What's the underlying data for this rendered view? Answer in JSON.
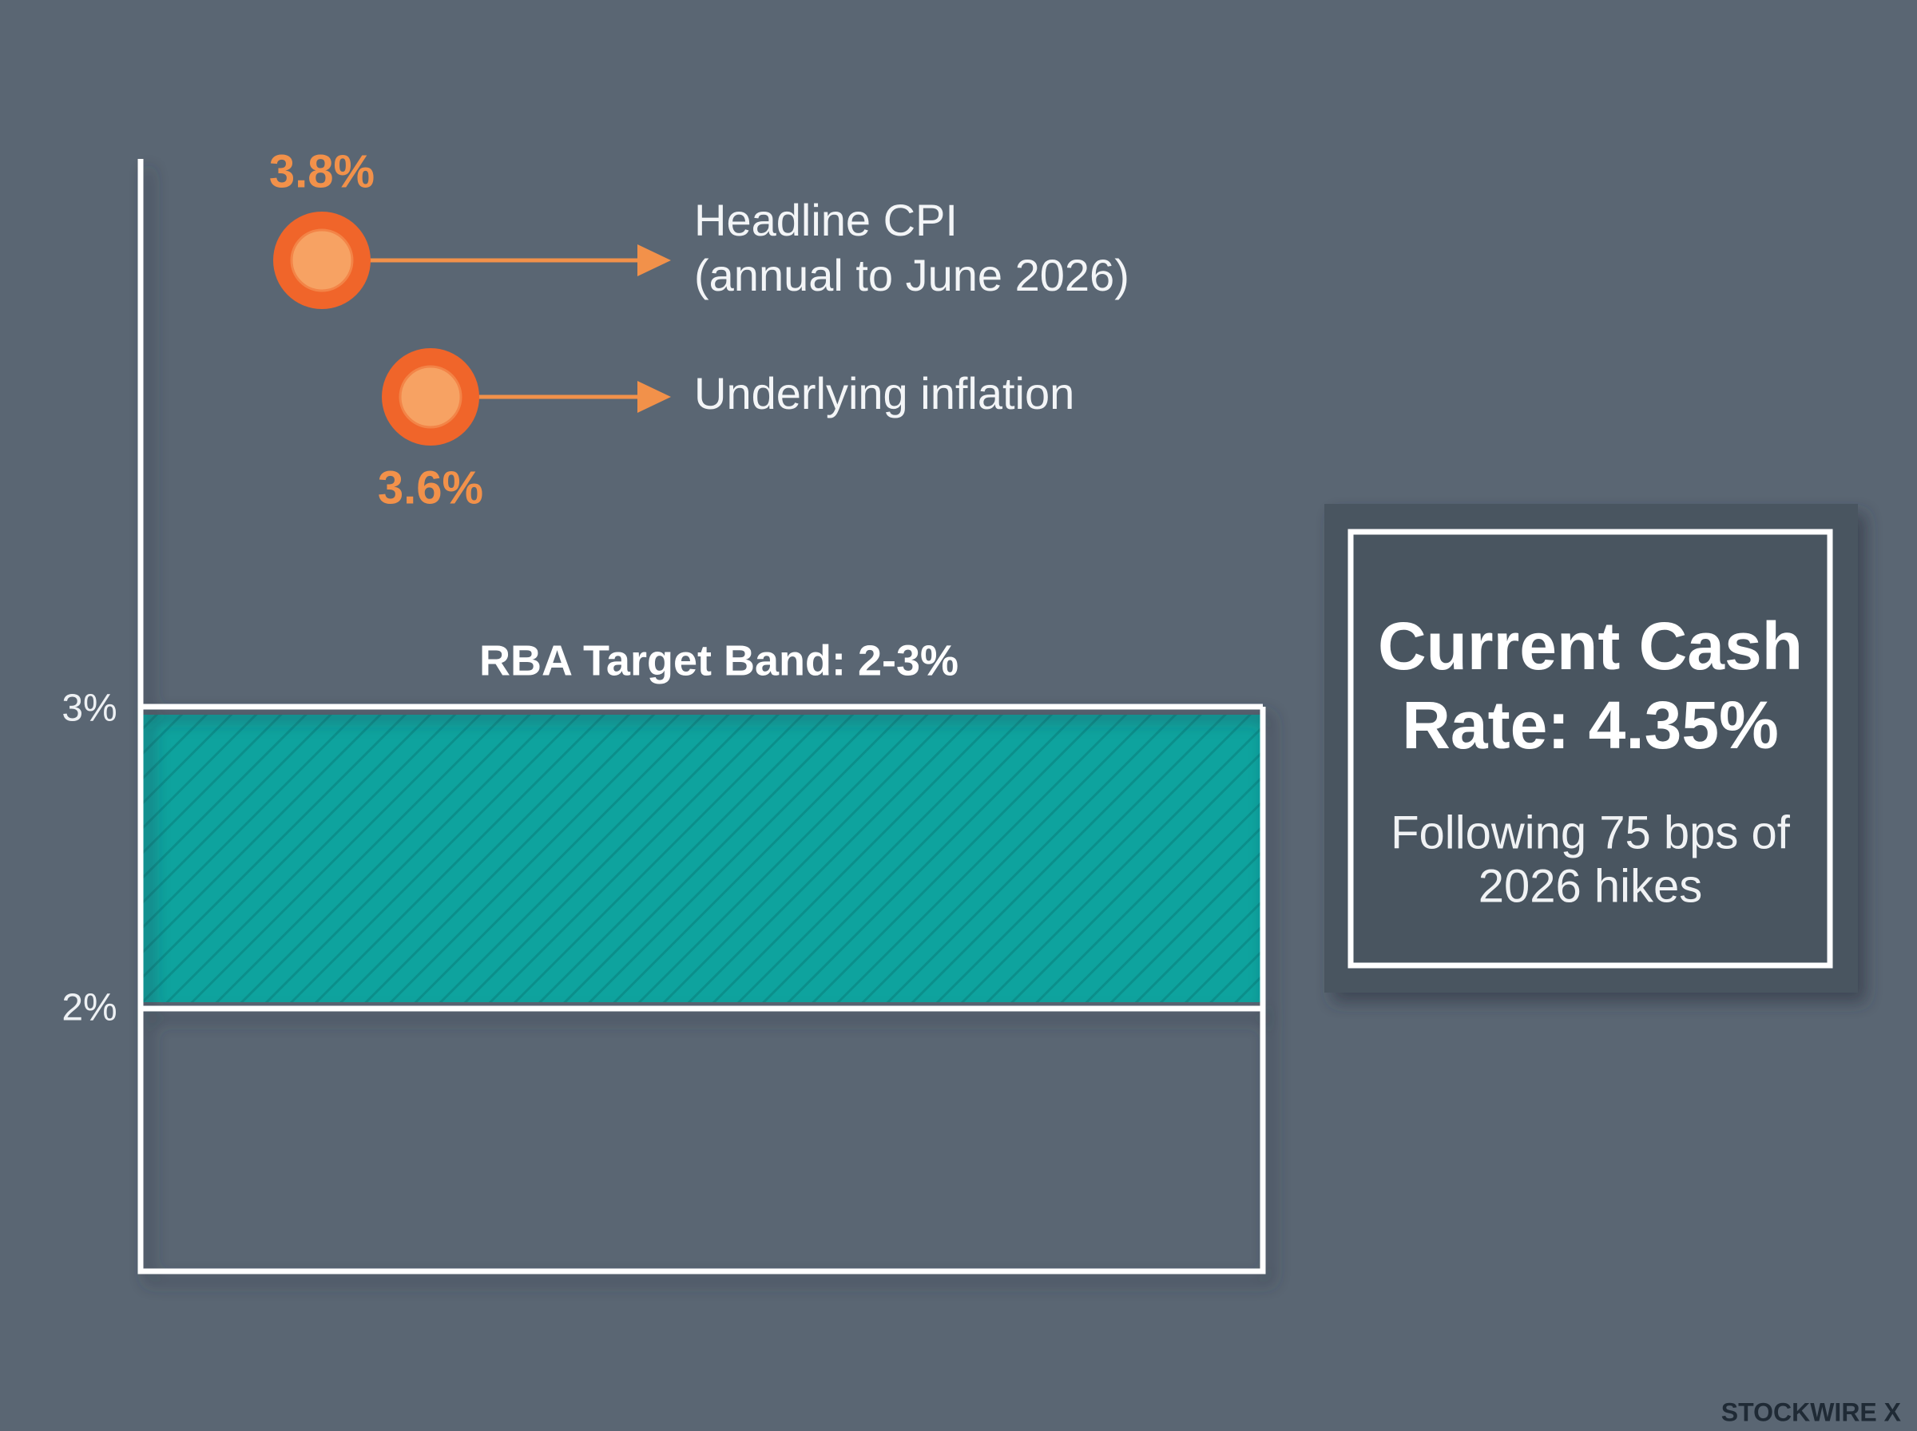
{
  "axis": {
    "ticks": [
      "3%",
      "2%"
    ]
  },
  "band": {
    "label": "RBA Target Band: 2-3%"
  },
  "points": [
    {
      "value_label": "3.8%",
      "label": [
        "Headline CPI",
        "(annual to June 2026)"
      ]
    },
    {
      "value_label": "3.6%",
      "label": [
        "Underlying inflation"
      ]
    }
  ],
  "callout": {
    "title": [
      "Current Cash",
      "Rate: 4.35%"
    ],
    "text": [
      "Following 75 bps of",
      "2026 hikes"
    ]
  },
  "watermark": "STOCKWIRE X"
}
